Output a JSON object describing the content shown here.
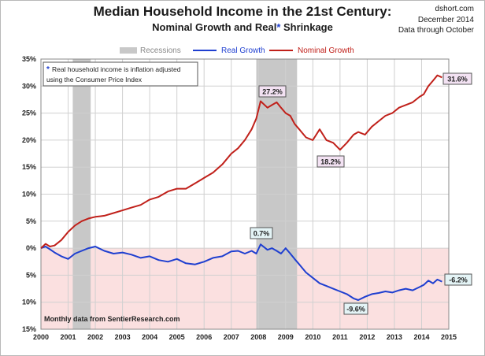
{
  "header": {
    "title": "Median Household Income in the 21st Century:",
    "subtitle_part1": "Nominal  Growth and Real",
    "subtitle_star": "*",
    "subtitle_part2": " Shrinkage",
    "source_site": "dshort.com",
    "source_date": "December 2014",
    "source_note": "Data through October"
  },
  "chart_data": {
    "type": "line",
    "title": "Median Household Income in the 21st Century:",
    "subtitle": "Nominal  Growth and Real* Shrinkage",
    "x_ticks": [
      "2000",
      "2001",
      "2002",
      "2003",
      "2004",
      "2005",
      "2006",
      "2007",
      "2008",
      "2009",
      "2010",
      "2011",
      "2012",
      "2013",
      "2014",
      "2015"
    ],
    "xlim": [
      2000,
      2015
    ],
    "ylim": [
      -15,
      35
    ],
    "y_ticks": [
      {
        "value": 35,
        "label": "35%"
      },
      {
        "value": 30,
        "label": "30%"
      },
      {
        "value": 25,
        "label": "25%"
      },
      {
        "value": 20,
        "label": "20%"
      },
      {
        "value": 15,
        "label": "15%"
      },
      {
        "value": 10,
        "label": "10%"
      },
      {
        "value": 5,
        "label": "5%"
      },
      {
        "value": 0,
        "label": "0%"
      },
      {
        "value": -5,
        "label": "5%"
      },
      {
        "value": -10,
        "label": "10%"
      },
      {
        "value": -15,
        "label": "15%"
      }
    ],
    "grid": true,
    "legend_position": "top",
    "recessions_label": "Recessions",
    "recessions": [
      {
        "start": 2001.17,
        "end": 2001.83
      },
      {
        "start": 2007.92,
        "end": 2009.42
      }
    ],
    "series": [
      {
        "name": "Real Growth",
        "color": "#1f3fd0",
        "x": [
          2000.0,
          2000.17,
          2000.33,
          2000.5,
          2000.75,
          2001.0,
          2001.25,
          2001.5,
          2001.75,
          2002.0,
          2002.33,
          2002.67,
          2003.0,
          2003.33,
          2003.67,
          2004.0,
          2004.33,
          2004.67,
          2005.0,
          2005.33,
          2005.67,
          2006.0,
          2006.33,
          2006.67,
          2007.0,
          2007.25,
          2007.5,
          2007.75,
          2007.92,
          2008.08,
          2008.33,
          2008.5,
          2008.67,
          2008.83,
          2009.0,
          2009.17,
          2009.33,
          2009.5,
          2009.75,
          2010.0,
          2010.25,
          2010.5,
          2010.75,
          2011.0,
          2011.25,
          2011.5,
          2011.67,
          2011.92,
          2012.17,
          2012.42,
          2012.67,
          2012.92,
          2013.17,
          2013.42,
          2013.67,
          2013.92,
          2014.08,
          2014.25,
          2014.42,
          2014.58,
          2014.75
        ],
        "y": [
          0,
          0.3,
          -0.2,
          -0.8,
          -1.5,
          -2.0,
          -1.0,
          -0.5,
          0.0,
          0.3,
          -0.5,
          -1.0,
          -0.8,
          -1.2,
          -1.8,
          -1.5,
          -2.2,
          -2.5,
          -2.0,
          -2.8,
          -3.0,
          -2.5,
          -1.8,
          -1.5,
          -0.6,
          -0.5,
          -1.0,
          -0.5,
          -1.0,
          0.7,
          -0.3,
          0.0,
          -0.5,
          -1.0,
          0.0,
          -1.0,
          -2.0,
          -3.0,
          -4.5,
          -5.5,
          -6.5,
          -7.0,
          -7.5,
          -8.0,
          -8.5,
          -9.3,
          -9.6,
          -9.0,
          -8.5,
          -8.3,
          -8.0,
          -8.2,
          -7.8,
          -7.5,
          -7.8,
          -7.2,
          -6.8,
          -6.0,
          -6.5,
          -5.8,
          -6.2
        ]
      },
      {
        "name": "Nominal Growth",
        "color": "#c0201a",
        "x": [
          2000.0,
          2000.17,
          2000.33,
          2000.5,
          2000.75,
          2001.0,
          2001.25,
          2001.5,
          2001.75,
          2002.0,
          2002.33,
          2002.67,
          2003.0,
          2003.33,
          2003.67,
          2004.0,
          2004.33,
          2004.67,
          2005.0,
          2005.33,
          2005.67,
          2006.0,
          2006.33,
          2006.67,
          2007.0,
          2007.25,
          2007.5,
          2007.75,
          2007.92,
          2008.08,
          2008.33,
          2008.5,
          2008.67,
          2008.83,
          2009.0,
          2009.17,
          2009.33,
          2009.5,
          2009.75,
          2010.0,
          2010.25,
          2010.5,
          2010.75,
          2011.0,
          2011.25,
          2011.5,
          2011.67,
          2011.92,
          2012.17,
          2012.42,
          2012.67,
          2012.92,
          2013.17,
          2013.42,
          2013.67,
          2013.92,
          2014.08,
          2014.25,
          2014.42,
          2014.58,
          2014.75
        ],
        "y": [
          0,
          0.8,
          0.3,
          0.5,
          1.5,
          3.0,
          4.2,
          5.0,
          5.5,
          5.8,
          6.0,
          6.5,
          7.0,
          7.5,
          8.0,
          9.0,
          9.5,
          10.5,
          11.0,
          11.0,
          12.0,
          13.0,
          14.0,
          15.5,
          17.5,
          18.5,
          20.0,
          22.0,
          24.0,
          27.2,
          26.0,
          26.5,
          27.0,
          26.0,
          25.0,
          24.5,
          23.0,
          22.0,
          20.5,
          20.0,
          22.0,
          20.0,
          19.5,
          18.2,
          19.5,
          21.0,
          21.5,
          21.0,
          22.5,
          23.5,
          24.5,
          25.0,
          26.0,
          26.5,
          27.0,
          28.0,
          28.5,
          30.0,
          31.0,
          32.0,
          31.6
        ]
      }
    ],
    "annotations": [
      {
        "text": "27.2%",
        "x": 2008.08,
        "y": 27.2,
        "color": "#c0201a"
      },
      {
        "text": "18.2%",
        "x": 2011.0,
        "y": 18.2,
        "color": "#c0201a"
      },
      {
        "text": "31.6%",
        "x": 2014.75,
        "y": 31.6,
        "color": "#c0201a"
      },
      {
        "text": "0.7%",
        "x": 2008.08,
        "y": 0.7,
        "color": "#1f3fd0"
      },
      {
        "text": "-9.6%",
        "x": 2011.67,
        "y": -9.6,
        "color": "#1f3fd0"
      },
      {
        "text": "-6.2%",
        "x": 2014.75,
        "y": -6.2,
        "color": "#1f3fd0"
      }
    ],
    "note_star": "*",
    "note_line1": "Real household  income is inflation adjusted",
    "note_line2": "using  the Consumer Price Index",
    "footer_note": "Monthly data from SentierResearch.com",
    "colors": {
      "negative_zone": "#fbe0e0",
      "recession_band": "#c8c8c8",
      "grid": "#d0d0d0",
      "annotation_fill_red": "#f3e2f3",
      "annotation_fill_blue": "#e4f4f6"
    }
  }
}
